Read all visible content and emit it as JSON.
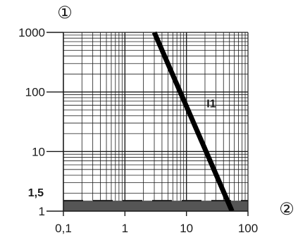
{
  "chart_data": {
    "type": "line",
    "x_scale": "log",
    "y_scale": "log",
    "xlim": [
      0.1,
      100
    ],
    "ylim": [
      1,
      1000
    ],
    "grid": true,
    "x_ticks": [
      {
        "value": 0.1,
        "label": "0,1"
      },
      {
        "value": 1,
        "label": "1"
      },
      {
        "value": 10,
        "label": "10"
      },
      {
        "value": 100,
        "label": "100"
      }
    ],
    "y_ticks": [
      {
        "value": 1,
        "label": "1"
      },
      {
        "value": 10,
        "label": "10"
      },
      {
        "value": 100,
        "label": "100"
      },
      {
        "value": 1000,
        "label": "1000"
      }
    ],
    "y_axis_marker": "①",
    "x_axis_marker": "②",
    "series": [
      {
        "name": "I1",
        "x": [
          3,
          55
        ],
        "y": [
          1000,
          1
        ],
        "color": "#000000"
      }
    ],
    "band": {
      "label": "1,5",
      "y_from": 1,
      "y_to": 1.5,
      "color": "#555555",
      "dash_color": "#1a1a1a"
    },
    "colors": {
      "grid": "#1a1a1a",
      "axis": "#1a1a1a",
      "background": "#ffffff"
    }
  }
}
